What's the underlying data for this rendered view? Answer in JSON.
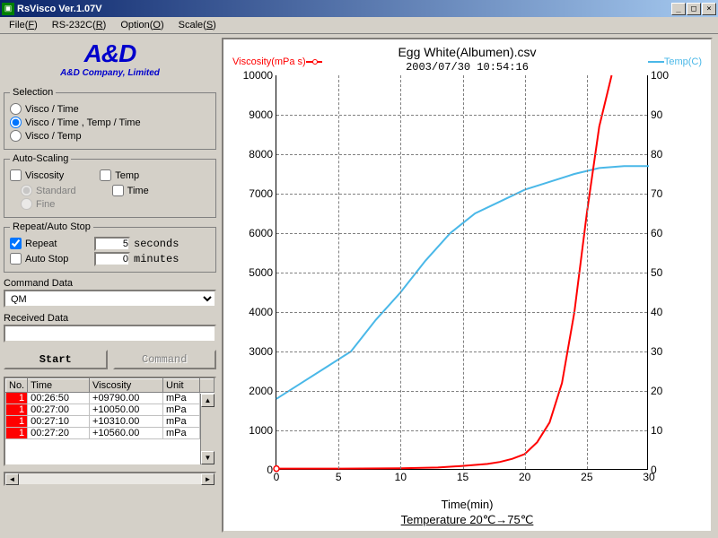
{
  "window": {
    "title": "RsVisco Ver.1.07V"
  },
  "menu": {
    "file": "File(F)",
    "rs232c": "RS-232C(R)",
    "option": "Option(O)",
    "scale": "Scale(S)"
  },
  "logo": {
    "big": "A&D",
    "small": "A&D Company, Limited"
  },
  "selection": {
    "legend": "Selection",
    "items": [
      "Visco / Time",
      "Visco / Time , Temp / Time",
      "Visco / Temp"
    ],
    "selected": 1
  },
  "autoscale": {
    "legend": "Auto-Scaling",
    "visc": "Viscosity",
    "temp": "Temp",
    "std": "Standard",
    "fine": "Fine",
    "time": "Time"
  },
  "repeat": {
    "legend": "Repeat/Auto Stop",
    "repeat_lbl": "Repeat",
    "repeat_val": "5",
    "repeat_unit": "seconds",
    "auto_lbl": "Auto Stop",
    "auto_val": "0",
    "auto_unit": "minutes",
    "repeat_checked": true
  },
  "cmd": {
    "label": "Command Data",
    "value": "QM"
  },
  "recv": {
    "label": "Received Data",
    "value": ""
  },
  "buttons": {
    "start": "Start",
    "command": "Command"
  },
  "table": {
    "headers": [
      "No.",
      "Time",
      "Viscosity",
      "Unit"
    ],
    "rows": [
      [
        "1",
        "00:26:50",
        "+09790.00",
        "mPa"
      ],
      [
        "1",
        "00:27:00",
        "+10050.00",
        "mPa"
      ],
      [
        "1",
        "00:27:10",
        "+10310.00",
        "mPa"
      ],
      [
        "1",
        "00:27:20",
        "+10560.00",
        "mPa"
      ]
    ]
  },
  "chart": {
    "title": "Egg White(Albumen).csv",
    "timestamp": "2003/07/30  10:54:16",
    "y1_label": "Viscosity(mPa s)",
    "y2_label": "Temp(C)",
    "x_label": "Time(min)",
    "footer": "Temperature 20℃→75℃",
    "xlim": [
      0,
      30
    ],
    "xtick_step": 5,
    "y1_lim": [
      0,
      10000
    ],
    "y1_tick_step": 1000,
    "y2_lim": [
      0,
      100
    ],
    "y2_tick_step": 10,
    "visc_color": "#ff0000",
    "temp_color": "#4ab8e8",
    "grid_color": "#808080",
    "visc_series": [
      [
        0,
        30
      ],
      [
        2,
        30
      ],
      [
        5,
        30
      ],
      [
        10,
        40
      ],
      [
        13,
        60
      ],
      [
        15,
        100
      ],
      [
        17,
        150
      ],
      [
        18,
        200
      ],
      [
        19,
        280
      ],
      [
        20,
        400
      ],
      [
        21,
        700
      ],
      [
        22,
        1200
      ],
      [
        23,
        2200
      ],
      [
        24,
        4000
      ],
      [
        25,
        6500
      ],
      [
        26,
        8700
      ],
      [
        27,
        10000
      ]
    ],
    "temp_series": [
      [
        0,
        18
      ],
      [
        2,
        22
      ],
      [
        4,
        26
      ],
      [
        6,
        30
      ],
      [
        8,
        38
      ],
      [
        10,
        45
      ],
      [
        12,
        53
      ],
      [
        14,
        60
      ],
      [
        16,
        65
      ],
      [
        18,
        68
      ],
      [
        20,
        71
      ],
      [
        22,
        73
      ],
      [
        24,
        75
      ],
      [
        26,
        76.5
      ],
      [
        28,
        77
      ],
      [
        30,
        77
      ]
    ]
  }
}
